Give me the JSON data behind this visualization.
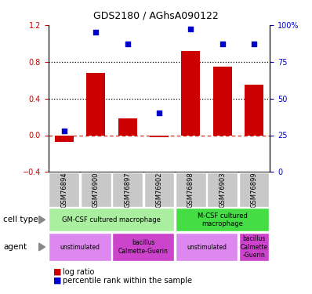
{
  "title": "GDS2180 / AGhsA090122",
  "samples": [
    "GSM76894",
    "GSM76900",
    "GSM76897",
    "GSM76902",
    "GSM76898",
    "GSM76903",
    "GSM76899"
  ],
  "log_ratio": [
    -0.07,
    0.68,
    0.18,
    -0.02,
    0.92,
    0.75,
    0.55
  ],
  "percentile_pct": [
    28,
    95,
    87,
    40,
    97,
    87,
    87
  ],
  "bar_color": "#cc0000",
  "scatter_color": "#0000cc",
  "ylim_left": [
    -0.4,
    1.2
  ],
  "ylim_right": [
    0,
    100
  ],
  "yticks_left": [
    -0.4,
    0.0,
    0.4,
    0.8,
    1.2
  ],
  "yticks_right": [
    0,
    25,
    50,
    75,
    100
  ],
  "hlines": [
    0.4,
    0.8
  ],
  "cell_type_groups": [
    {
      "label": "GM-CSF cultured macrophage",
      "span": [
        0,
        4
      ],
      "color": "#aaeea0"
    },
    {
      "label": "M-CSF cultured\nmacrophage",
      "span": [
        4,
        7
      ],
      "color": "#44dd44"
    }
  ],
  "agent_groups": [
    {
      "label": "unstimulated",
      "span": [
        0,
        2
      ],
      "color": "#dd88ee"
    },
    {
      "label": "bacillus\nCalmette-Guerin",
      "span": [
        2,
        4
      ],
      "color": "#cc44cc"
    },
    {
      "label": "unstimulated",
      "span": [
        4,
        6
      ],
      "color": "#dd88ee"
    },
    {
      "label": "bacillus\nCalmette\n-Guerin",
      "span": [
        6,
        7
      ],
      "color": "#cc44cc"
    }
  ],
  "sample_bg_color": "#c8c8c8",
  "left_label_color": "#cc0000",
  "right_label_color": "#0000cc",
  "zero_line_color": "#cc0000",
  "dotted_line_color": "#000000"
}
